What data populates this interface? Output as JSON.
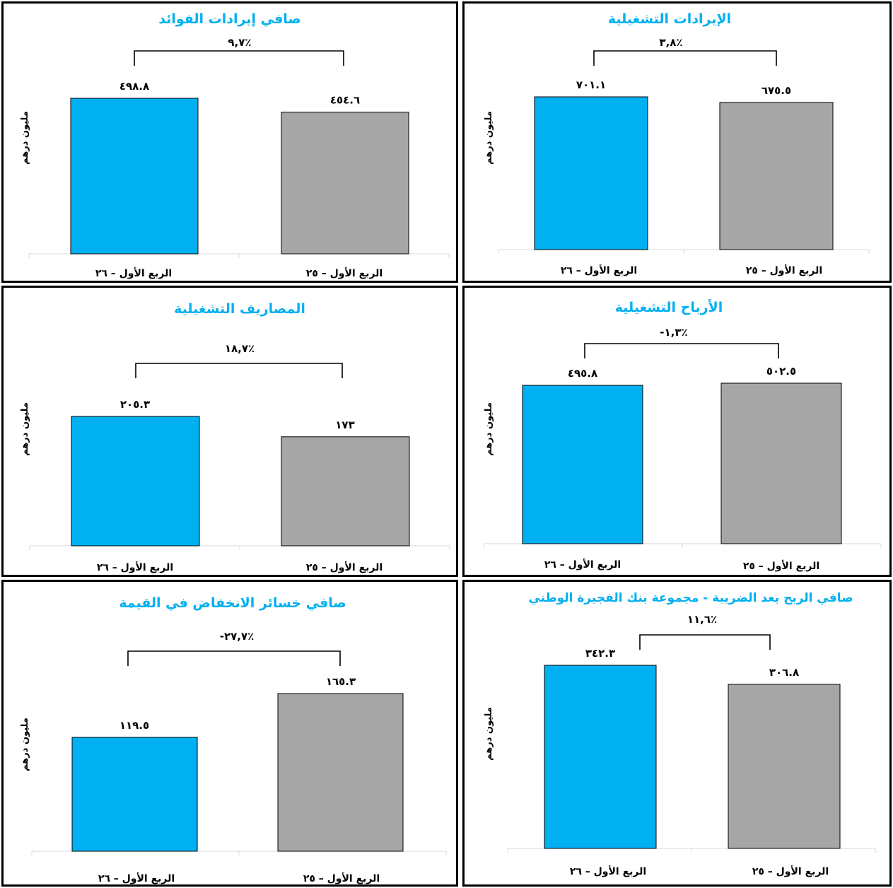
{
  "colors": {
    "q1_26": "#00b0f0",
    "q1_25": "#a6a6a6",
    "title": "#00b0f0"
  },
  "chart_data": [
    {
      "type": "bar",
      "title": "صافي إيرادات الفوائد",
      "ylabel": "مليون درهم",
      "change_label": "٪٩,٧",
      "categories": [
        "الربع الأول – ٢٦",
        "الربع الأول – ٢٥"
      ],
      "values": [
        498.8,
        454.6
      ],
      "value_labels": [
        "٤٩٨.٨",
        "٤٥٤.٦"
      ],
      "colors": [
        "#00b0f0",
        "#a6a6a6"
      ]
    },
    {
      "type": "bar",
      "title": "الإيرادات التشغيلية",
      "ylabel": "مليون درهم",
      "change_label": "٪٣,٨",
      "categories": [
        "الربع الأول – ٢٦",
        "الربع الأول – ٢٥"
      ],
      "values": [
        701.1,
        675.5
      ],
      "value_labels": [
        "٧٠١.١",
        "٦٧٥.٥"
      ],
      "colors": [
        "#00b0f0",
        "#a6a6a6"
      ]
    },
    {
      "type": "bar",
      "title": "المصاريف التشغيلية",
      "ylabel": "مليون درهم",
      "change_label": "٪١٨,٧",
      "categories": [
        "الربع الأول – ٢٦",
        "الربع الأول – ٢٥"
      ],
      "values": [
        205.3,
        173
      ],
      "value_labels": [
        "٢٠٥.٣",
        "١٧٣"
      ],
      "colors": [
        "#00b0f0",
        "#a6a6a6"
      ]
    },
    {
      "type": "bar",
      "title": "الأرباح التشغيلية",
      "ylabel": "مليون درهم",
      "change_label": "٪١,٣-",
      "categories": [
        "الربع الأول – ٢٦",
        "الربع الأول – ٢٥"
      ],
      "values": [
        495.8,
        502.5
      ],
      "value_labels": [
        "٤٩٥.٨",
        "٥٠٢.٥"
      ],
      "colors": [
        "#00b0f0",
        "#a6a6a6"
      ]
    },
    {
      "type": "bar",
      "title": "صافي خسائر الانخفاض في القيمة",
      "ylabel": "مليون درهم",
      "change_label": "٪٢٧,٧-",
      "categories": [
        "الربع الأول – ٢٦",
        "الربع الأول – ٢٥"
      ],
      "values": [
        119.5,
        165.3
      ],
      "value_labels": [
        "١١٩.٥",
        "١٦٥.٣"
      ],
      "colors": [
        "#00b0f0",
        "#a6a6a6"
      ]
    },
    {
      "type": "bar",
      "title": "صافي الربح بعد الضريبة - مجموعة بنك الفجيرة الوطني",
      "ylabel": "مليون درهم",
      "change_label": "٪١١,٦",
      "categories": [
        "الربع الأول – ٢٦",
        "الربع الأول – ٢٥"
      ],
      "values": [
        342.3,
        306.8
      ],
      "value_labels": [
        "٣٤٢.٣",
        "٣٠٦.٨"
      ],
      "colors": [
        "#00b0f0",
        "#a6a6a6"
      ]
    }
  ]
}
